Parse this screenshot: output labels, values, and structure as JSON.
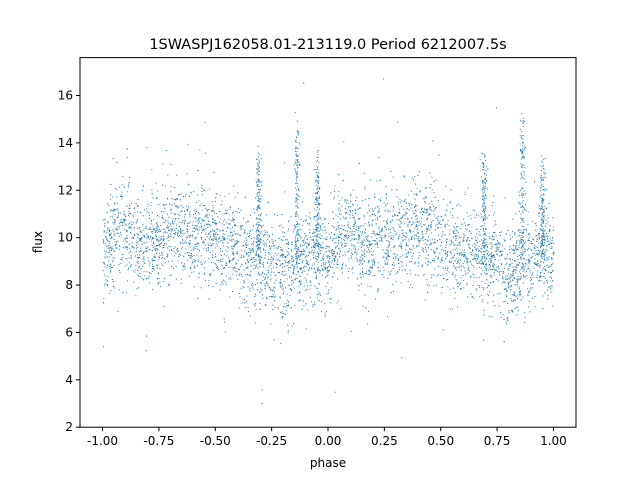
{
  "chart_data": {
    "type": "scatter",
    "title": "1SWASPJ162058.01-213119.0 Period 6212007.5s",
    "xlabel": "phase",
    "ylabel": "flux",
    "xlim": [
      -1.1,
      1.1
    ],
    "ylim": [
      2,
      17.6
    ],
    "xticks": [
      "-1.00",
      "-0.75",
      "-0.50",
      "-0.25",
      "0.00",
      "0.25",
      "0.50",
      "0.75",
      "1.00"
    ],
    "xtick_values": [
      -1.0,
      -0.75,
      -0.5,
      -0.25,
      0.0,
      0.25,
      0.5,
      0.75,
      1.0
    ],
    "yticks": [
      "2",
      "4",
      "6",
      "8",
      "10",
      "12",
      "14",
      "16"
    ],
    "ytick_values": [
      2,
      4,
      6,
      8,
      10,
      12,
      14,
      16
    ],
    "grid": false,
    "marker_color": "#1f77b4",
    "series": [
      {
        "profile_x": [
          -1.0,
          -0.95,
          -0.9,
          -0.85,
          -0.8,
          -0.75,
          -0.7,
          -0.65,
          -0.6,
          -0.55,
          -0.5,
          -0.45,
          -0.4,
          -0.35,
          -0.3,
          -0.25,
          -0.2,
          -0.15,
          -0.1,
          -0.05,
          0.0,
          0.05,
          0.1,
          0.15,
          0.2,
          0.25,
          0.3,
          0.35,
          0.4,
          0.45,
          0.5,
          0.55,
          0.6,
          0.65,
          0.7,
          0.75,
          0.8,
          0.85,
          0.9,
          0.95,
          1.0
        ],
        "profile_mean": [
          9.2,
          10.2,
          10.3,
          9.6,
          9.8,
          10.1,
          10.3,
          10.4,
          10.2,
          10.4,
          10.0,
          9.6,
          9.4,
          9.3,
          9.0,
          9.0,
          8.6,
          8.7,
          9.1,
          9.2,
          9.3,
          10.0,
          10.2,
          9.7,
          9.8,
          10.0,
          10.1,
          10.3,
          10.2,
          10.4,
          10.0,
          9.6,
          9.4,
          9.3,
          9.0,
          8.9,
          8.6,
          8.6,
          9.0,
          9.3,
          9.2
        ],
        "spike_phases": [
          -0.31,
          -0.14,
          -0.05,
          0.69,
          0.86,
          0.95
        ],
        "spike_peaks": [
          13.5,
          14.5,
          13.0,
          13.5,
          14.5,
          13.0
        ]
      }
    ]
  }
}
